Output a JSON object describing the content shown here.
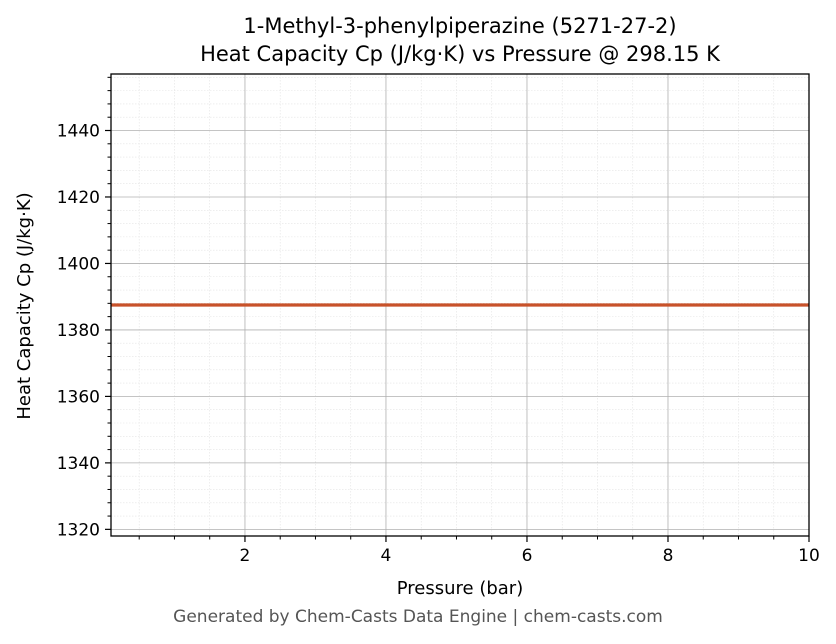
{
  "chart_data": {
    "type": "line",
    "title_line1": "1-Methyl-3-phenylpiperazine (5271-27-2)",
    "title_line2": "Heat Capacity Cp (J/kg·K) vs Pressure @ 298.15 K",
    "xlabel": "Pressure (bar)",
    "ylabel": "Heat Capacity Cp (J/kg·K)",
    "xlim": [
      0.1,
      10
    ],
    "ylim": [
      1318,
      1457
    ],
    "x_ticks": [
      2,
      4,
      6,
      8,
      10
    ],
    "y_ticks": [
      1320,
      1340,
      1360,
      1380,
      1400,
      1420,
      1440
    ],
    "grid": true,
    "series": [
      {
        "color": "#c8522a",
        "x": [
          0.1,
          10
        ],
        "y": [
          1387.5,
          1387.5
        ]
      }
    ]
  },
  "footer": "Generated by Chem-Casts Data Engine | chem-casts.com"
}
